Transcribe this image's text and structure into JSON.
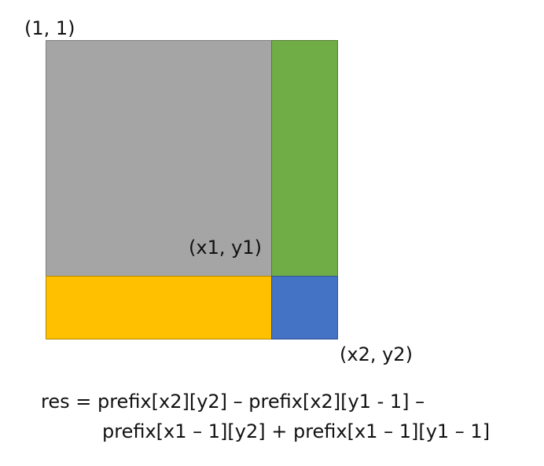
{
  "labels": {
    "top_left": "(1, 1)",
    "inner_corner": "(x1, y1)",
    "bottom_right": "(x2, y2)"
  },
  "formula": {
    "line1": "res = prefix[x2][y2] – prefix[x2][y1 - 1] –",
    "line2": "prefix[x1 – 1][y2] + prefix[x1 – 1][y1 – 1]"
  },
  "colors": {
    "gray_region": "#A5A5A5",
    "green_region": "#70AD47",
    "yellow_region": "#FFC000",
    "blue_region": "#4472C4",
    "text": "#111111"
  }
}
